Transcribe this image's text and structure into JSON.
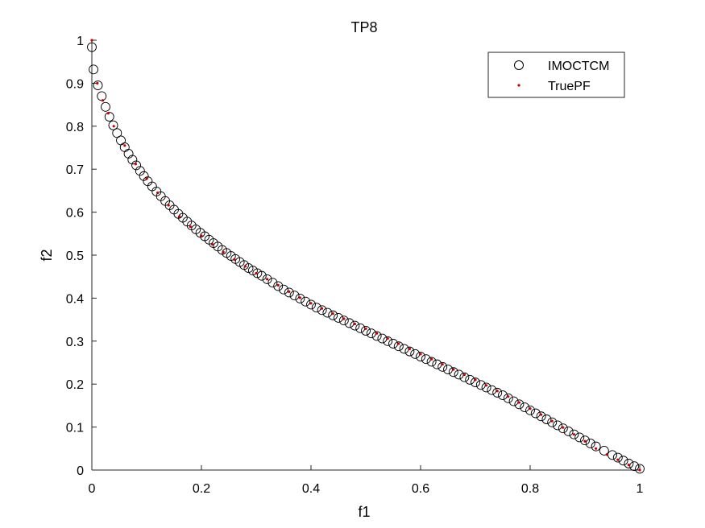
{
  "chart_data": {
    "type": "scatter",
    "title": "TP8",
    "xlabel": "f1",
    "ylabel": "f2",
    "xlim": [
      0,
      1
    ],
    "ylim": [
      0,
      1
    ],
    "xticks": [
      "0",
      "0.2",
      "0.4",
      "0.6",
      "0.8",
      "1"
    ],
    "yticks": [
      "0",
      "0.1",
      "0.2",
      "0.3",
      "0.4",
      "0.5",
      "0.6",
      "0.7",
      "0.8",
      "0.9",
      "1"
    ],
    "grid": false,
    "legend_position": "top-right",
    "series": [
      {
        "name": "IMOCTCM",
        "marker": "open-circle",
        "color": "#000000",
        "x": [
          0.0,
          0.003,
          0.011,
          0.018,
          0.025,
          0.032,
          0.039,
          0.046,
          0.053,
          0.06,
          0.067,
          0.074,
          0.081,
          0.088,
          0.095,
          0.102,
          0.11,
          0.118,
          0.126,
          0.134,
          0.142,
          0.15,
          0.158,
          0.166,
          0.174,
          0.182,
          0.19,
          0.198,
          0.206,
          0.214,
          0.222,
          0.23,
          0.238,
          0.246,
          0.254,
          0.262,
          0.27,
          0.278,
          0.286,
          0.294,
          0.302,
          0.31,
          0.32,
          0.33,
          0.34,
          0.35,
          0.36,
          0.37,
          0.38,
          0.39,
          0.4,
          0.41,
          0.42,
          0.43,
          0.44,
          0.45,
          0.46,
          0.47,
          0.48,
          0.49,
          0.5,
          0.51,
          0.52,
          0.53,
          0.54,
          0.55,
          0.56,
          0.57,
          0.58,
          0.59,
          0.6,
          0.61,
          0.62,
          0.63,
          0.64,
          0.65,
          0.66,
          0.67,
          0.68,
          0.69,
          0.7,
          0.71,
          0.72,
          0.73,
          0.74,
          0.75,
          0.76,
          0.77,
          0.78,
          0.79,
          0.8,
          0.81,
          0.82,
          0.83,
          0.84,
          0.85,
          0.86,
          0.87,
          0.88,
          0.89,
          0.9,
          0.91,
          0.92,
          0.935,
          0.95,
          0.96,
          0.97,
          0.98,
          0.99,
          1.0
        ],
        "y": [
          0.984,
          0.932,
          0.895,
          0.87,
          0.845,
          0.822,
          0.802,
          0.784,
          0.767,
          0.751,
          0.736,
          0.722,
          0.709,
          0.696,
          0.684,
          0.672,
          0.66,
          0.648,
          0.637,
          0.626,
          0.616,
          0.606,
          0.596,
          0.587,
          0.578,
          0.569,
          0.56,
          0.552,
          0.544,
          0.536,
          0.528,
          0.52,
          0.512,
          0.505,
          0.498,
          0.491,
          0.484,
          0.477,
          0.47,
          0.464,
          0.458,
          0.452,
          0.444,
          0.436,
          0.428,
          0.42,
          0.413,
          0.406,
          0.399,
          0.392,
          0.385,
          0.378,
          0.372,
          0.366,
          0.36,
          0.354,
          0.348,
          0.342,
          0.336,
          0.33,
          0.324,
          0.318,
          0.312,
          0.306,
          0.3,
          0.294,
          0.288,
          0.282,
          0.276,
          0.27,
          0.264,
          0.258,
          0.252,
          0.246,
          0.24,
          0.234,
          0.228,
          0.222,
          0.216,
          0.21,
          0.204,
          0.198,
          0.192,
          0.186,
          0.18,
          0.174,
          0.167,
          0.16,
          0.153,
          0.146,
          0.139,
          0.132,
          0.125,
          0.118,
          0.111,
          0.104,
          0.097,
          0.09,
          0.083,
          0.076,
          0.069,
          0.062,
          0.055,
          0.045,
          0.035,
          0.029,
          0.022,
          0.015,
          0.009,
          0.003
        ]
      },
      {
        "name": "TruePF",
        "marker": "dot",
        "color": "#cc0000",
        "x": [
          0.0,
          0.01,
          0.02,
          0.03,
          0.04,
          0.06,
          0.08,
          0.1,
          0.12,
          0.14,
          0.16,
          0.18,
          0.2,
          0.22,
          0.24,
          0.26,
          0.28,
          0.3,
          0.32,
          0.34,
          0.36,
          0.38,
          0.4,
          0.42,
          0.44,
          0.46,
          0.48,
          0.5,
          0.52,
          0.54,
          0.56,
          0.58,
          0.6,
          0.62,
          0.64,
          0.66,
          0.68,
          0.7,
          0.72,
          0.74,
          0.76,
          0.78,
          0.8,
          0.82,
          0.84,
          0.86,
          0.88,
          0.9,
          0.92,
          0.94,
          0.96,
          0.98,
          1.0
        ],
        "y": [
          1.0,
          0.9,
          0.86,
          0.83,
          0.8,
          0.755,
          0.712,
          0.678,
          0.645,
          0.616,
          0.59,
          0.566,
          0.545,
          0.525,
          0.507,
          0.49,
          0.474,
          0.458,
          0.444,
          0.43,
          0.415,
          0.401,
          0.388,
          0.376,
          0.364,
          0.352,
          0.34,
          0.329,
          0.318,
          0.306,
          0.294,
          0.282,
          0.27,
          0.258,
          0.246,
          0.234,
          0.222,
          0.21,
          0.197,
          0.184,
          0.171,
          0.157,
          0.143,
          0.129,
          0.114,
          0.099,
          0.083,
          0.067,
          0.05,
          0.036,
          0.024,
          0.012,
          0.0
        ]
      }
    ]
  }
}
